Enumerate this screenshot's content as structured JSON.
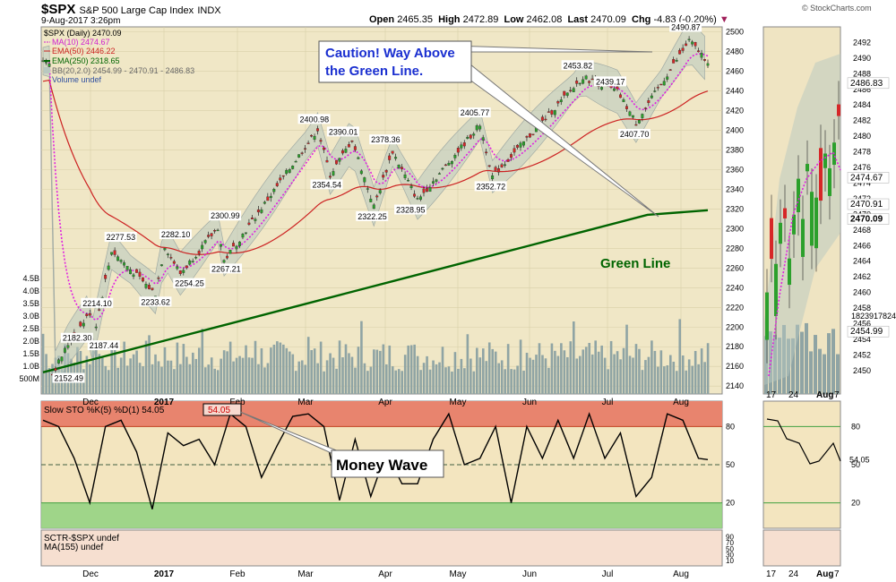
{
  "header": {
    "symbol": "$SPX",
    "name": "S&P 500 Large Cap Index",
    "exchange": "INDX",
    "date": "9-Aug-2017 3:26pm",
    "watermark": "© StockCharts.com",
    "open_label": "Open",
    "open": "2465.35",
    "high_label": "High",
    "high": "2472.89",
    "low_label": "Low",
    "low": "2462.08",
    "last_label": "Last",
    "last": "2470.09",
    "chg_label": "Chg",
    "chg": "-4.83 (-0.20%)",
    "chg_marker": "▼"
  },
  "legend": {
    "price": "$SPX (Daily) 2470.09",
    "ma10": "MA(10) 2474.67",
    "ema50": "EMA(50) 2446.22",
    "ema250": "EMA(250) 2318.65",
    "bb": "BB(20,2.0) 2454.99 - 2470.91 - 2486.83",
    "volume": "Volume undef"
  },
  "annotations": {
    "caution_line1": "Caution! Way Above",
    "caution_line2": "the Green Line.",
    "green_line": "Green Line",
    "money_wave": "Money Wave"
  },
  "sto_panel": {
    "legend": "Slow STO %K(5) %D(1) 54.05",
    "value_box": "54.05",
    "right_value": "54.05"
  },
  "sctr_panel": {
    "legend1": "SCTR-$SPX undef",
    "legend2": "MA(155) undef"
  },
  "colors": {
    "up": "#2ca02c",
    "down": "#d62728",
    "ma10": "#e020e0",
    "ema50": "#cc2222",
    "ema250": "#006400",
    "bb_fill": "#b8c8c0",
    "volume": "#8fa4a4",
    "panel_bg": "#f3e7c0",
    "sto_red": "#e8846e",
    "sto_green": "#8fd27f"
  },
  "right_panel": {
    "x_ticks": [
      "17",
      "24",
      "Aug",
      "7"
    ],
    "price_labels": {
      "bb_upper": "2486.83",
      "ma10": "2474.67",
      "bb_mid": "2470.91",
      "last": "2470.09",
      "bb_lower": "2454.99",
      "volume": "1823917824"
    }
  },
  "chart_data": [
    {
      "type": "candlestick",
      "title": "$SPX S&P 500 Large Cap Index INDX",
      "x_ticks": [
        "Dec",
        "2017",
        "Feb",
        "Mar",
        "Apr",
        "May",
        "Jun",
        "Jul",
        "Aug"
      ],
      "y_ticks": [
        2140,
        2160,
        2180,
        2200,
        2220,
        2240,
        2260,
        2280,
        2300,
        2320,
        2340,
        2360,
        2380,
        2400,
        2420,
        2440,
        2460,
        2480,
        2500
      ],
      "ylim": [
        2132,
        2505
      ],
      "volume_ticks": [
        "500M",
        "1.0B",
        "1.5B",
        "2.0B",
        "2.5B",
        "3.0B",
        "3.5B",
        "4.0B",
        "4.5B"
      ],
      "points": [
        {
          "i": 3,
          "v": 2152.49
        },
        {
          "i": 8,
          "v": 2182.3
        },
        {
          "i": 15,
          "v": 2214.1
        },
        {
          "i": 16,
          "v": 2187.44
        },
        {
          "i": 22,
          "v": 2277.53
        },
        {
          "i": 36,
          "v": 2233.62
        },
        {
          "i": 39,
          "v": 2282.1
        },
        {
          "i": 44,
          "v": 2254.25
        },
        {
          "i": 56,
          "v": 2300.99
        },
        {
          "i": 58,
          "v": 2267.21
        },
        {
          "i": 88,
          "v": 2400.98
        },
        {
          "i": 92,
          "v": 2354.54
        },
        {
          "i": 99,
          "v": 2390.01
        },
        {
          "i": 106,
          "v": 2322.25
        },
        {
          "i": 112,
          "v": 2378.36
        },
        {
          "i": 120,
          "v": 2328.95
        },
        {
          "i": 140,
          "v": 2405.77
        },
        {
          "i": 144,
          "v": 2352.72
        },
        {
          "i": 173,
          "v": 2453.82
        },
        {
          "i": 184,
          "v": 2439.17
        },
        {
          "i": 190,
          "v": 2407.7
        },
        {
          "i": 207,
          "v": 2490.87
        },
        {
          "i": 213,
          "v": 2470.09
        }
      ],
      "ema250_line": [
        2154,
        2170,
        2186,
        2202,
        2218,
        2234,
        2250,
        2266,
        2282,
        2298,
        2314,
        2318.65
      ],
      "x_range_days": [
        0,
        213
      ],
      "labels_shown": [
        "2152.49",
        "2182.30",
        "2214.10",
        "2187.44",
        "2277.53",
        "2233.62",
        "2282.10",
        "2254.25",
        "2300.99",
        "2267.21",
        "2400.98",
        "2354.54",
        "2390.01",
        "2322.25",
        "2378.36",
        "2328.95",
        "2405.77",
        "2352.72",
        "2453.82",
        "2439.17",
        "2407.70",
        "2490.87"
      ]
    },
    {
      "type": "line",
      "title": "Slow STO %K(5) %D(1) 54.05",
      "y_ticks": [
        20,
        50,
        80
      ],
      "ylim": [
        0,
        100
      ],
      "overbought": 80,
      "oversold": 20,
      "midline": 50,
      "series": [
        {
          "name": "%K",
          "x": [
            0,
            5,
            10,
            15,
            20,
            25,
            30,
            35,
            40,
            45,
            50,
            55,
            60,
            65,
            70,
            75,
            80,
            85,
            90,
            95,
            100,
            105,
            110,
            115,
            120,
            125,
            130,
            135,
            140,
            145,
            150,
            155,
            160,
            165,
            170,
            175,
            180,
            185,
            190,
            195,
            200,
            205,
            210,
            213
          ],
          "values": [
            85,
            80,
            55,
            20,
            80,
            85,
            60,
            15,
            75,
            65,
            70,
            50,
            90,
            80,
            40,
            65,
            88,
            90,
            80,
            22,
            70,
            25,
            60,
            35,
            35,
            70,
            90,
            50,
            55,
            80,
            20,
            80,
            55,
            85,
            55,
            90,
            55,
            75,
            25,
            40,
            90,
            85,
            55,
            54
          ]
        }
      ]
    },
    {
      "type": "line",
      "title": "SCTR-$SPX undef",
      "y_ticks": [
        10,
        20,
        30,
        40,
        50,
        60,
        70,
        80,
        90
      ],
      "series": []
    }
  ]
}
